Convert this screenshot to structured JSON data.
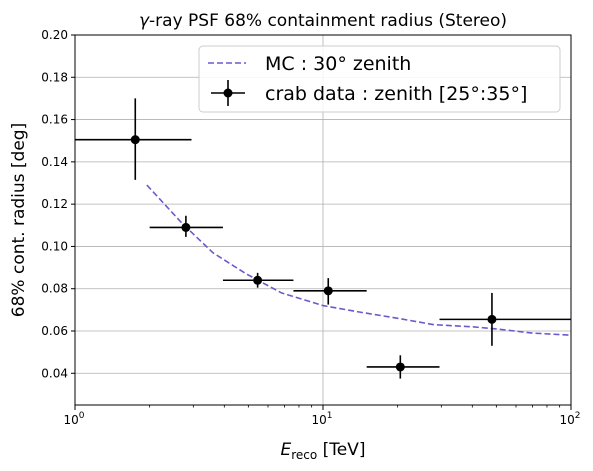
{
  "chart_data": {
    "type": "scatter",
    "title": "γ-ray PSF 68% containment radius (Stereo)",
    "title_prefix": "γ",
    "title_rest": "-ray PSF 68% containment radius (Stereo)",
    "xlabel": "E_reco [TeV]",
    "xlabel_main": "E",
    "xlabel_sub": "reco",
    "xlabel_unit": " [TeV]",
    "ylabel": "68% cont. radius [deg]",
    "xscale": "log",
    "xlim": [
      1,
      100
    ],
    "ylim": [
      0.025,
      0.2
    ],
    "xticks": [
      {
        "value": 1,
        "base": "10",
        "exp": "0"
      },
      {
        "value": 10,
        "base": "10",
        "exp": "1"
      },
      {
        "value": 100,
        "base": "10",
        "exp": "2"
      }
    ],
    "yticks": [
      0.04,
      0.06,
      0.08,
      0.1,
      0.12,
      0.14,
      0.16,
      0.18,
      0.2
    ],
    "ytick_labels": [
      "0.04",
      "0.06",
      "0.08",
      "0.10",
      "0.12",
      "0.14",
      "0.16",
      "0.18",
      "0.20"
    ],
    "grid": true,
    "legend_position": "top-right",
    "series": [
      {
        "name": "MC : 30° zenith",
        "kind": "dashed-line",
        "color": "#6a5acd",
        "x": [
          1.95,
          2.7,
          3.6,
          4.9,
          6.8,
          10.0,
          14.0,
          20.0,
          28.0,
          40.0,
          50.0,
          70.0,
          100.0
        ],
        "y": [
          0.129,
          0.111,
          0.097,
          0.087,
          0.078,
          0.072,
          0.069,
          0.066,
          0.063,
          0.062,
          0.061,
          0.059,
          0.058
        ]
      },
      {
        "name": "crab data : zenith [25°:35°]",
        "kind": "errorbar",
        "color": "#000000",
        "points": [
          {
            "x": 1.75,
            "y": 0.1505,
            "xlo": 1.0,
            "xhi": 2.95,
            "ylo": 0.1315,
            "yhi": 0.17
          },
          {
            "x": 2.8,
            "y": 0.109,
            "xlo": 2.0,
            "xhi": 3.95,
            "ylo": 0.1045,
            "yhi": 0.1145
          },
          {
            "x": 5.45,
            "y": 0.084,
            "xlo": 3.95,
            "xhi": 7.6,
            "ylo": 0.0805,
            "yhi": 0.0875
          },
          {
            "x": 10.5,
            "y": 0.079,
            "xlo": 7.6,
            "xhi": 15.0,
            "ylo": 0.0725,
            "yhi": 0.085
          },
          {
            "x": 20.5,
            "y": 0.043,
            "xlo": 15.0,
            "xhi": 29.5,
            "ylo": 0.0375,
            "yhi": 0.0485
          },
          {
            "x": 48.0,
            "y": 0.0655,
            "xlo": 29.5,
            "xhi": 100.0,
            "ylo": 0.053,
            "yhi": 0.078
          }
        ]
      }
    ]
  }
}
